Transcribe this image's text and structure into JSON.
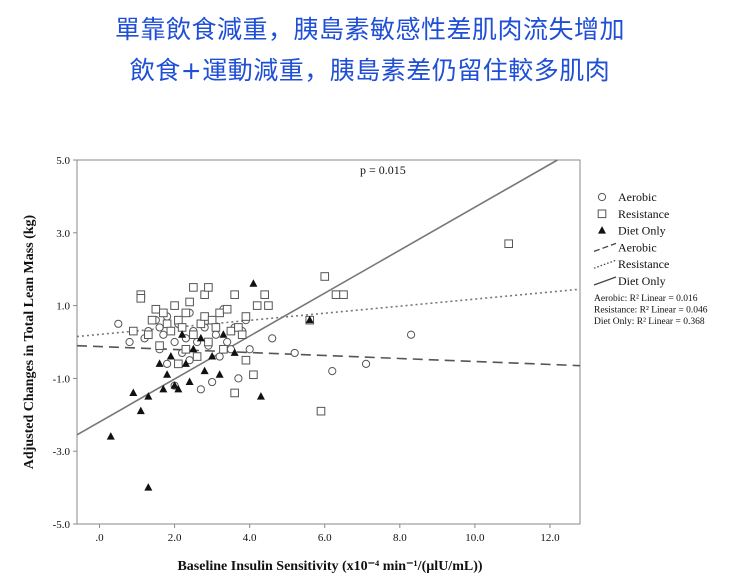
{
  "headline": {
    "line1": "單靠飲食減重，胰島素敏感性差肌肉流失增加",
    "line2": "飲食+運動減重，胰島素差仍留住較多肌肉",
    "color": "#1f4fd6"
  },
  "chart_data": {
    "type": "scatter",
    "xlabel": "Baseline Insulin Sensitivity (x10⁻⁴ min⁻¹/(µlU/mL))",
    "ylabel": "Adjusted Changes in Total Lean Mass (kg)",
    "xlim": [
      -0.6,
      12.8
    ],
    "ylim": [
      -5.0,
      5.0
    ],
    "x_ticks": [
      0,
      2,
      4,
      6,
      8,
      10,
      12
    ],
    "x_tick_labels": [
      ".0",
      "2.0",
      "4.0",
      "6.0",
      "8.0",
      "10.0",
      "12.0"
    ],
    "y_ticks": [
      -5,
      -3,
      -1,
      1,
      3,
      5
    ],
    "y_tick_labels": [
      "-5.0",
      "-3.0",
      "-1.0",
      "1.0",
      "3.0",
      "5.0"
    ],
    "grid": false,
    "annotation": "p = 0.015",
    "legend_position": "right",
    "legend": [
      {
        "label": "Aerobic",
        "symbol": "open-circle"
      },
      {
        "label": "Resistance",
        "symbol": "open-square"
      },
      {
        "label": "Diet Only",
        "symbol": "filled-triangle"
      },
      {
        "label": "Aerobic",
        "symbol": "long-dash-line"
      },
      {
        "label": "Resistance",
        "symbol": "dotted-line"
      },
      {
        "label": "Diet Only",
        "symbol": "solid-line"
      }
    ],
    "r2_labels": [
      "Aerobic: R² Linear = 0.016",
      "Resistance: R² Linear = 0.046",
      "Diet Only: R² Linear = 0.368"
    ],
    "series": [
      {
        "name": "Aerobic",
        "marker": "circle",
        "color": "#555555",
        "points": [
          [
            0.5,
            0.5
          ],
          [
            0.8,
            0.0
          ],
          [
            1.2,
            0.1
          ],
          [
            1.3,
            0.3
          ],
          [
            1.5,
            0.6
          ],
          [
            1.6,
            0.4
          ],
          [
            1.6,
            -0.2
          ],
          [
            1.7,
            0.2
          ],
          [
            1.8,
            0.7
          ],
          [
            1.8,
            -0.6
          ],
          [
            1.9,
            0.3
          ],
          [
            2.0,
            0.0
          ],
          [
            2.0,
            -1.2
          ],
          [
            2.1,
            0.5
          ],
          [
            2.2,
            -0.3
          ],
          [
            2.3,
            0.1
          ],
          [
            2.4,
            0.8
          ],
          [
            2.4,
            -0.5
          ],
          [
            2.5,
            0.3
          ],
          [
            2.6,
            0.0
          ],
          [
            2.7,
            -1.3
          ],
          [
            2.8,
            0.4
          ],
          [
            2.9,
            -0.1
          ],
          [
            3.0,
            -1.1
          ],
          [
            3.0,
            0.6
          ],
          [
            3.1,
            0.2
          ],
          [
            3.2,
            -0.4
          ],
          [
            3.3,
            0.9
          ],
          [
            3.4,
            0.0
          ],
          [
            3.5,
            -0.2
          ],
          [
            3.6,
            0.4
          ],
          [
            3.7,
            -1.0
          ],
          [
            3.8,
            0.3
          ],
          [
            3.9,
            0.6
          ],
          [
            4.0,
            -0.2
          ],
          [
            4.6,
            0.1
          ],
          [
            5.2,
            -0.3
          ],
          [
            6.2,
            -0.8
          ],
          [
            7.1,
            -0.6
          ],
          [
            8.3,
            0.2
          ]
        ]
      },
      {
        "name": "Resistance",
        "marker": "square",
        "color": "#555555",
        "points": [
          [
            0.9,
            0.3
          ],
          [
            1.1,
            1.3
          ],
          [
            1.1,
            1.2
          ],
          [
            1.3,
            0.2
          ],
          [
            1.4,
            0.6
          ],
          [
            1.5,
            0.9
          ],
          [
            1.6,
            -0.1
          ],
          [
            1.7,
            0.8
          ],
          [
            1.8,
            0.5
          ],
          [
            1.9,
            0.3
          ],
          [
            2.0,
            1.0
          ],
          [
            2.1,
            0.6
          ],
          [
            2.1,
            -0.6
          ],
          [
            2.2,
            0.4
          ],
          [
            2.3,
            0.8
          ],
          [
            2.3,
            -0.2
          ],
          [
            2.4,
            1.1
          ],
          [
            2.5,
            0.2
          ],
          [
            2.5,
            1.5
          ],
          [
            2.6,
            -0.4
          ],
          [
            2.7,
            0.5
          ],
          [
            2.8,
            0.7
          ],
          [
            2.8,
            1.3
          ],
          [
            2.9,
            0.0
          ],
          [
            2.9,
            1.5
          ],
          [
            3.0,
            0.6
          ],
          [
            3.1,
            0.4
          ],
          [
            3.2,
            0.8
          ],
          [
            3.3,
            -0.2
          ],
          [
            3.4,
            0.9
          ],
          [
            3.5,
            0.3
          ],
          [
            3.6,
            -1.4
          ],
          [
            3.6,
            1.3
          ],
          [
            3.7,
            0.4
          ],
          [
            3.8,
            0.2
          ],
          [
            3.9,
            -0.5
          ],
          [
            3.9,
            0.7
          ],
          [
            4.1,
            -0.9
          ],
          [
            4.2,
            1.0
          ],
          [
            4.4,
            1.3
          ],
          [
            4.5,
            1.0
          ],
          [
            5.6,
            0.6
          ],
          [
            6.0,
            1.8
          ],
          [
            6.3,
            1.3
          ],
          [
            6.5,
            1.3
          ],
          [
            5.9,
            -1.9
          ],
          [
            10.9,
            2.7
          ]
        ]
      },
      {
        "name": "Diet Only",
        "marker": "triangle",
        "color": "#111111",
        "points": [
          [
            0.3,
            -2.6
          ],
          [
            0.9,
            -1.4
          ],
          [
            1.1,
            -1.9
          ],
          [
            1.3,
            -1.5
          ],
          [
            1.3,
            -4.0
          ],
          [
            1.6,
            -0.6
          ],
          [
            1.7,
            -1.3
          ],
          [
            1.8,
            -0.9
          ],
          [
            1.9,
            -0.4
          ],
          [
            2.0,
            -1.2
          ],
          [
            2.1,
            -1.3
          ],
          [
            2.3,
            -0.6
          ],
          [
            2.4,
            -1.1
          ],
          [
            2.5,
            -0.2
          ],
          [
            2.8,
            -0.8
          ],
          [
            3.0,
            -0.4
          ],
          [
            3.2,
            -0.9
          ],
          [
            3.6,
            -0.3
          ],
          [
            4.1,
            1.6
          ],
          [
            4.3,
            -1.5
          ],
          [
            5.6,
            0.6
          ],
          [
            2.2,
            0.2
          ],
          [
            2.7,
            0.1
          ],
          [
            3.3,
            0.2
          ]
        ]
      }
    ],
    "fit_lines": [
      {
        "name": "Aerobic",
        "style": "long-dash",
        "color": "#555555",
        "x": [
          -0.6,
          12.8
        ],
        "y": [
          -0.1,
          -0.65
        ]
      },
      {
        "name": "Resistance",
        "style": "dotted",
        "color": "#777777",
        "x": [
          -0.6,
          12.8
        ],
        "y": [
          0.15,
          1.45
        ]
      },
      {
        "name": "Diet Only",
        "style": "solid",
        "color": "#777777",
        "x": [
          -0.6,
          12.2
        ],
        "y": [
          -2.55,
          5.0
        ]
      }
    ]
  }
}
